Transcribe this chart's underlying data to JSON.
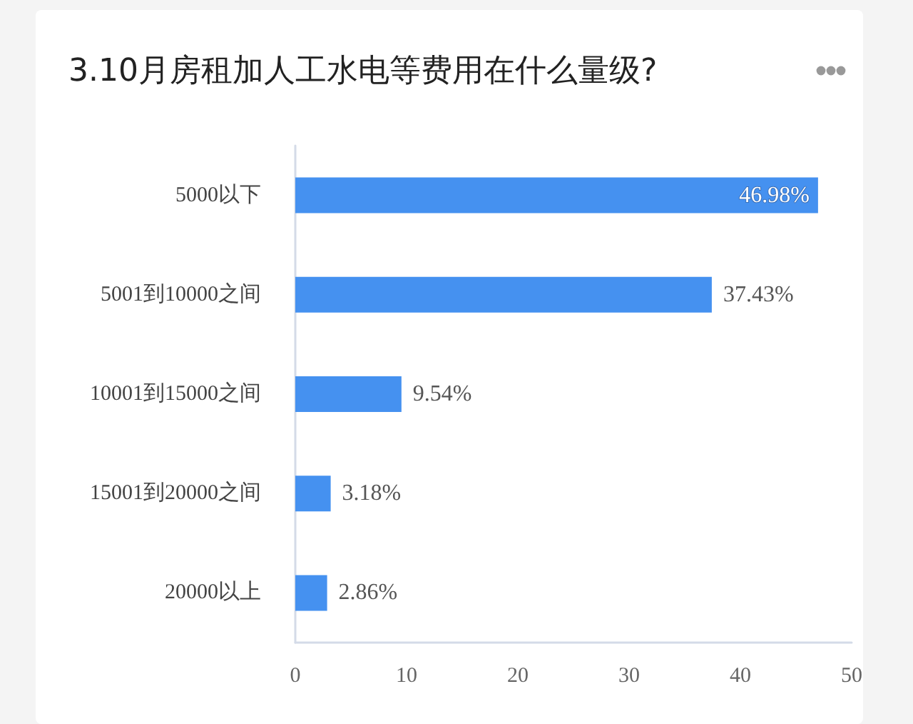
{
  "chart_data": {
    "type": "bar",
    "orientation": "horizontal",
    "title": "3.10月房租加人工水电等费用在什么量级?",
    "categories": [
      "5000以下",
      "5001到10000之间",
      "10001到15000之间",
      "15001到20000之间",
      "20000以上"
    ],
    "values": [
      46.98,
      37.43,
      9.54,
      3.18,
      2.86
    ],
    "color": "#4591f0",
    "xlim": [
      0,
      50
    ],
    "xticks": [
      0,
      10,
      20,
      30,
      40,
      50
    ],
    "value_labels": [
      "46.98%",
      "37.43%",
      "9.54%",
      "3.18%",
      "2.86%"
    ],
    "grid": false
  }
}
